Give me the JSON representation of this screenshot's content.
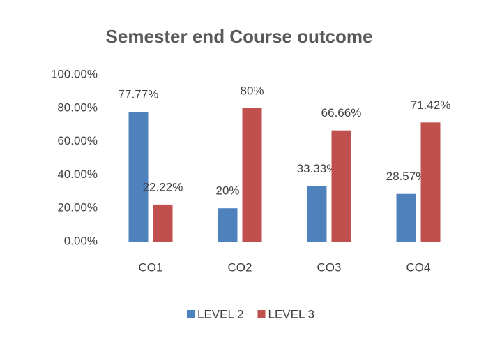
{
  "chart_data": {
    "type": "bar",
    "title": "Semester end Course outcome",
    "categories": [
      "CO1",
      "CO2",
      "CO3",
      "CO4"
    ],
    "series": [
      {
        "name": "LEVEL 2",
        "color": "#4f81bd",
        "values": [
          77.77,
          20,
          33.33,
          28.57
        ],
        "value_labels": [
          "77.77%",
          "20%",
          "33.33%",
          "28.57%"
        ]
      },
      {
        "name": "LEVEL 3",
        "color": "#c0504d",
        "values": [
          22.22,
          80,
          66.66,
          71.42
        ],
        "value_labels": [
          "22.22%",
          "80%",
          "66.66%",
          "71.42%"
        ]
      }
    ],
    "ylim": [
      0,
      100
    ],
    "yticks": [
      {
        "value": 0,
        "label": "0.00%"
      },
      {
        "value": 20,
        "label": "20.00%"
      },
      {
        "value": 40,
        "label": "40.00%"
      },
      {
        "value": 60,
        "label": "60.00%"
      },
      {
        "value": 80,
        "label": "80.00%"
      },
      {
        "value": 100,
        "label": "100.00%"
      }
    ],
    "grid": false,
    "legend": "bottom"
  }
}
